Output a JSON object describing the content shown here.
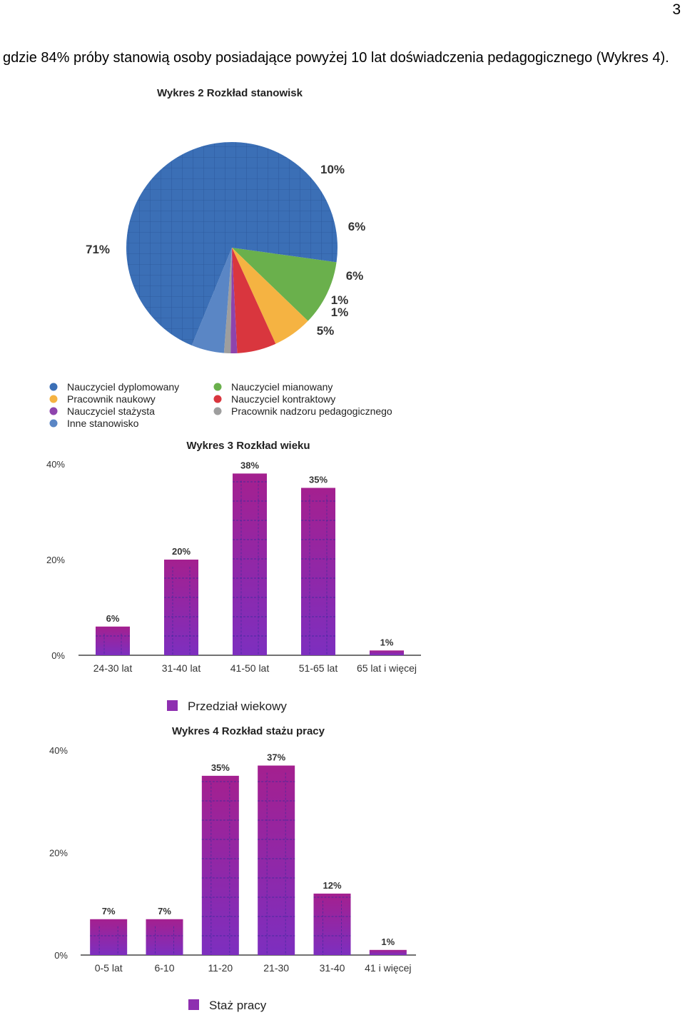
{
  "page": {
    "number": "3",
    "intro_text": "gdzie 84% próby stanowią osoby posiadające powyżej 10 lat doświadczenia pedagogicznego (Wykres 4)."
  },
  "chart_data": [
    {
      "type": "pie",
      "title": "Wykres 2 Rozkład stanowisk",
      "legend_position": "bottom",
      "slices": [
        {
          "name": "Nauczyciel dyplomowany",
          "value": 71,
          "label": "71%",
          "color": "#3b6fb6"
        },
        {
          "name": "Nauczyciel mianowany",
          "value": 10,
          "label": "10%",
          "color": "#6ab04c"
        },
        {
          "name": "Pracownik naukowy",
          "value": 6,
          "label": "6%",
          "color": "#f5b342"
        },
        {
          "name": "Nauczyciel kontraktowy",
          "value": 6,
          "label": "6%",
          "color": "#d9363e"
        },
        {
          "name": "Nauczyciel stażysta",
          "value": 1,
          "label": "1%",
          "color": "#8e44ad"
        },
        {
          "name": "Pracownik nadzoru pedagogicznego",
          "value": 1,
          "label": "1%",
          "color": "#9e9e9e"
        },
        {
          "name": "Inne stanowisko",
          "value": 5,
          "label": "5%",
          "color": "#5a86c5"
        }
      ],
      "legend_order": [
        "Nauczyciel dyplomowany",
        "Nauczyciel mianowany",
        "Pracownik naukowy",
        "Nauczyciel kontraktowy",
        "Nauczyciel stażysta",
        "Pracownik nadzoru pedagogicznego",
        "Inne stanowisko"
      ]
    },
    {
      "type": "bar",
      "title": "Wykres 3 Rozkład wieku",
      "categories": [
        "24-30 lat",
        "31-40 lat",
        "41-50 lat",
        "51-65 lat",
        "65 lat i więcej"
      ],
      "series": [
        {
          "name": "Przedział wiekowy",
          "values": [
            6,
            20,
            38,
            35,
            1
          ]
        }
      ],
      "data_labels": [
        "6%",
        "20%",
        "38%",
        "35%",
        "1%"
      ],
      "y_ticks": [
        "0%",
        "20%",
        "40%"
      ],
      "ylim": [
        0,
        40
      ],
      "legend_position": "bottom",
      "color": "#8e2fb0"
    },
    {
      "type": "bar",
      "title": "Wykres 4 Rozkład stażu pracy",
      "categories": [
        "0-5 lat",
        "6-10",
        "11-20",
        "21-30",
        "31-40",
        "41 i więcej"
      ],
      "series": [
        {
          "name": "Staż pracy",
          "values": [
            7,
            7,
            35,
            37,
            12,
            1
          ]
        }
      ],
      "data_labels": [
        "7%",
        "7%",
        "35%",
        "37%",
        "12%",
        "1%"
      ],
      "y_ticks": [
        "0%",
        "20%",
        "40%"
      ],
      "ylim": [
        0,
        40
      ],
      "legend_position": "bottom",
      "color": "#8e2fb0"
    }
  ]
}
